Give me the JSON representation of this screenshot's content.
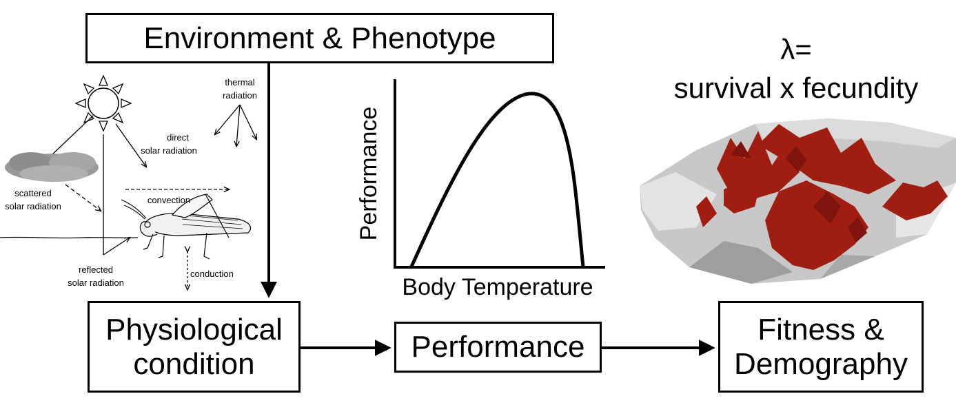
{
  "boxes": {
    "environment": "Environment & Phenotype",
    "physiological_line1": "Physiological",
    "physiological_line2": "condition",
    "performance": "Performance",
    "fitness_line1": "Fitness &",
    "fitness_line2": "Demography"
  },
  "equation": {
    "line1": "λ=",
    "line2": "survival x fecundity"
  },
  "energy_labels": {
    "thermal_1": "thermal",
    "thermal_2": "radiation",
    "direct_1": "direct",
    "direct_2": "solar radiation",
    "scattered_1": "scattered",
    "scattered_2": "solar radiation",
    "convection": "convection",
    "reflected_1": "reflected",
    "reflected_2": "solar radiation",
    "conduction": "conduction"
  },
  "curve": {
    "xlabel": "Body Temperature",
    "ylabel": "Performance"
  },
  "colors": {
    "surface_red": "#a01d12",
    "surface_grey": "#c8c8c8",
    "cloud": "#9a9a9a"
  }
}
